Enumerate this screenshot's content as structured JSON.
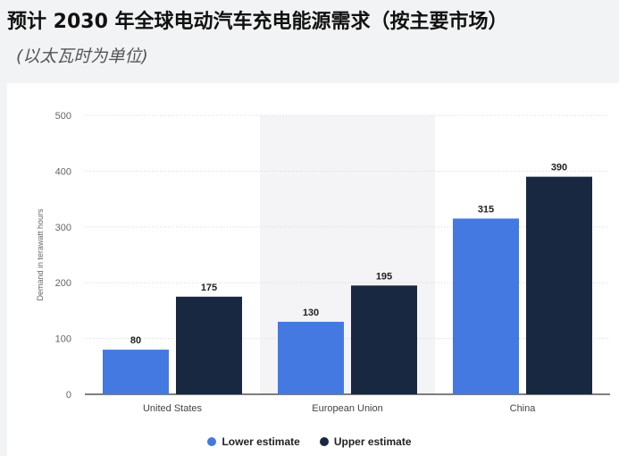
{
  "header": {
    "title": "预计 2030 年全球电动汽车充电能源需求（按主要市场）",
    "subtitle": "(以太瓦时为单位)"
  },
  "chart_data": {
    "type": "bar",
    "categories": [
      "United States",
      "European Union",
      "China"
    ],
    "series": [
      {
        "name": "Lower estimate",
        "values": [
          80,
          130,
          315
        ],
        "color": "#4379e0"
      },
      {
        "name": "Upper estimate",
        "values": [
          175,
          195,
          390
        ],
        "color": "#182841"
      }
    ],
    "ylabel": "Demand in terawatt hours",
    "ylim": [
      0,
      500
    ],
    "yticks": [
      0,
      100,
      200,
      300,
      400,
      500
    ],
    "grid": true,
    "highlighted_category": "European Union",
    "legend_position": "bottom-center"
  }
}
